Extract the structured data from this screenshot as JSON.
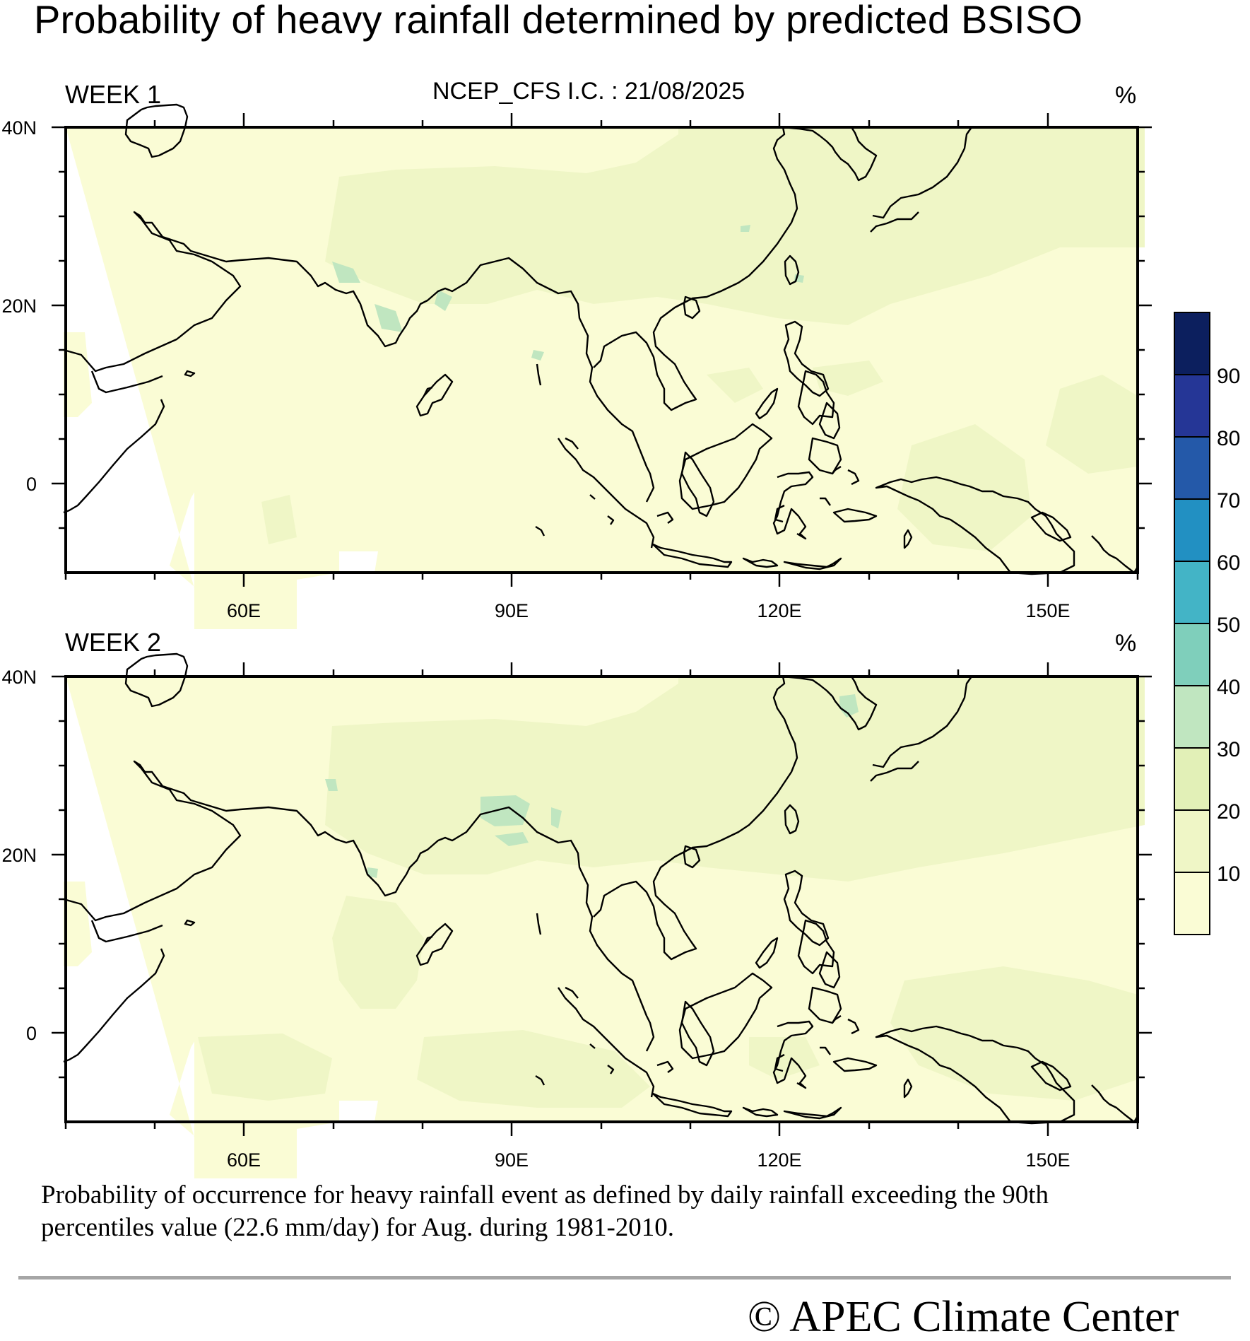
{
  "title": "Probability of heavy rainfall determined by predicted BSISO",
  "ic_label": "NCEP_CFS  I.C. : 21/08/2025",
  "panels": [
    {
      "label": "WEEK 1",
      "unit": "%"
    },
    {
      "label": "WEEK 2",
      "unit": "%"
    }
  ],
  "axes": {
    "lon_ticks": [
      "60E",
      "90E",
      "120E",
      "150E"
    ],
    "lat_ticks": [
      "40N",
      "20N",
      "0"
    ],
    "lon_range": [
      40,
      160
    ],
    "lat_range": [
      -10,
      40
    ]
  },
  "colorbar": {
    "levels": [
      "10",
      "20",
      "30",
      "40",
      "50",
      "60",
      "70",
      "80",
      "90"
    ],
    "colors": [
      "#fafcd5",
      "#eff6c6",
      "#e2f0b7",
      "#c0e6c0",
      "#7fcfbb",
      "#43b4c6",
      "#2290c2",
      "#2459a9",
      "#253696",
      "#0c1f5e"
    ]
  },
  "caption": {
    "line1": "Probability of occurrence for heavy rainfall event as defined by daily rainfall exceeding the 90th",
    "line2": "percentiles value (22.6 mm/day) for Aug. during 1981-2010."
  },
  "credit": "©  APEC Climate Center"
}
